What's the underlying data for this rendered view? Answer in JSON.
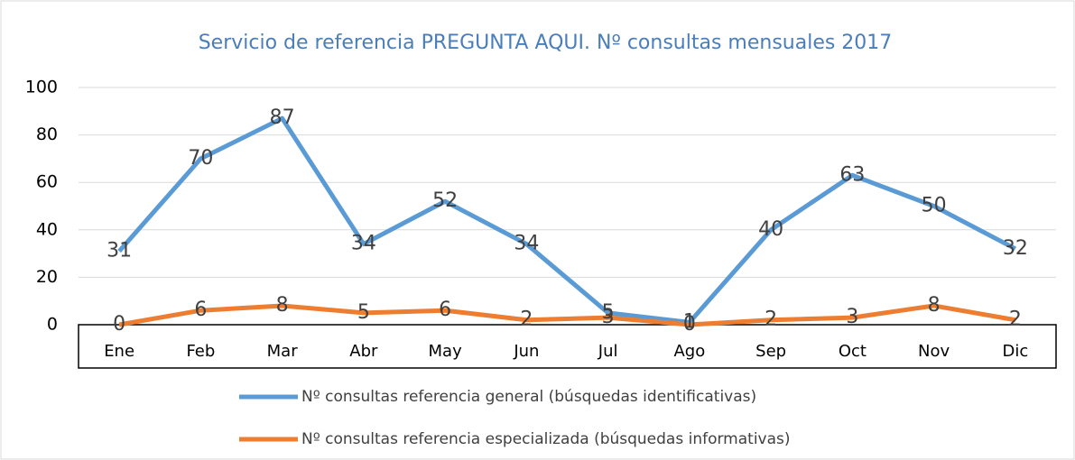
{
  "chart_data": {
    "type": "line",
    "title": "Servicio de referencia PREGUNTA AQUI. Nº consultas mensuales 2017",
    "categories": [
      "Ene",
      "Feb",
      "Mar",
      "Abr",
      "May",
      "Jun",
      "Jul",
      "Ago",
      "Sep",
      "Oct",
      "Nov",
      "Dic"
    ],
    "series": [
      {
        "name": "Nº consultas referencia general (búsquedas identificativas)",
        "color": "#5b9bd5",
        "values": [
          31,
          70,
          87,
          34,
          52,
          34,
          5,
          1,
          40,
          63,
          50,
          32
        ]
      },
      {
        "name": "Nº consultas referencia especializada (búsquedas informativas)",
        "color": "#ed7d31",
        "values": [
          0,
          6,
          8,
          5,
          6,
          2,
          3,
          0,
          2,
          3,
          8,
          2
        ]
      }
    ],
    "ylim": [
      0,
      100
    ],
    "yticks": [
      0,
      20,
      40,
      60,
      80,
      100
    ],
    "grid": true,
    "legend": "bottom"
  }
}
